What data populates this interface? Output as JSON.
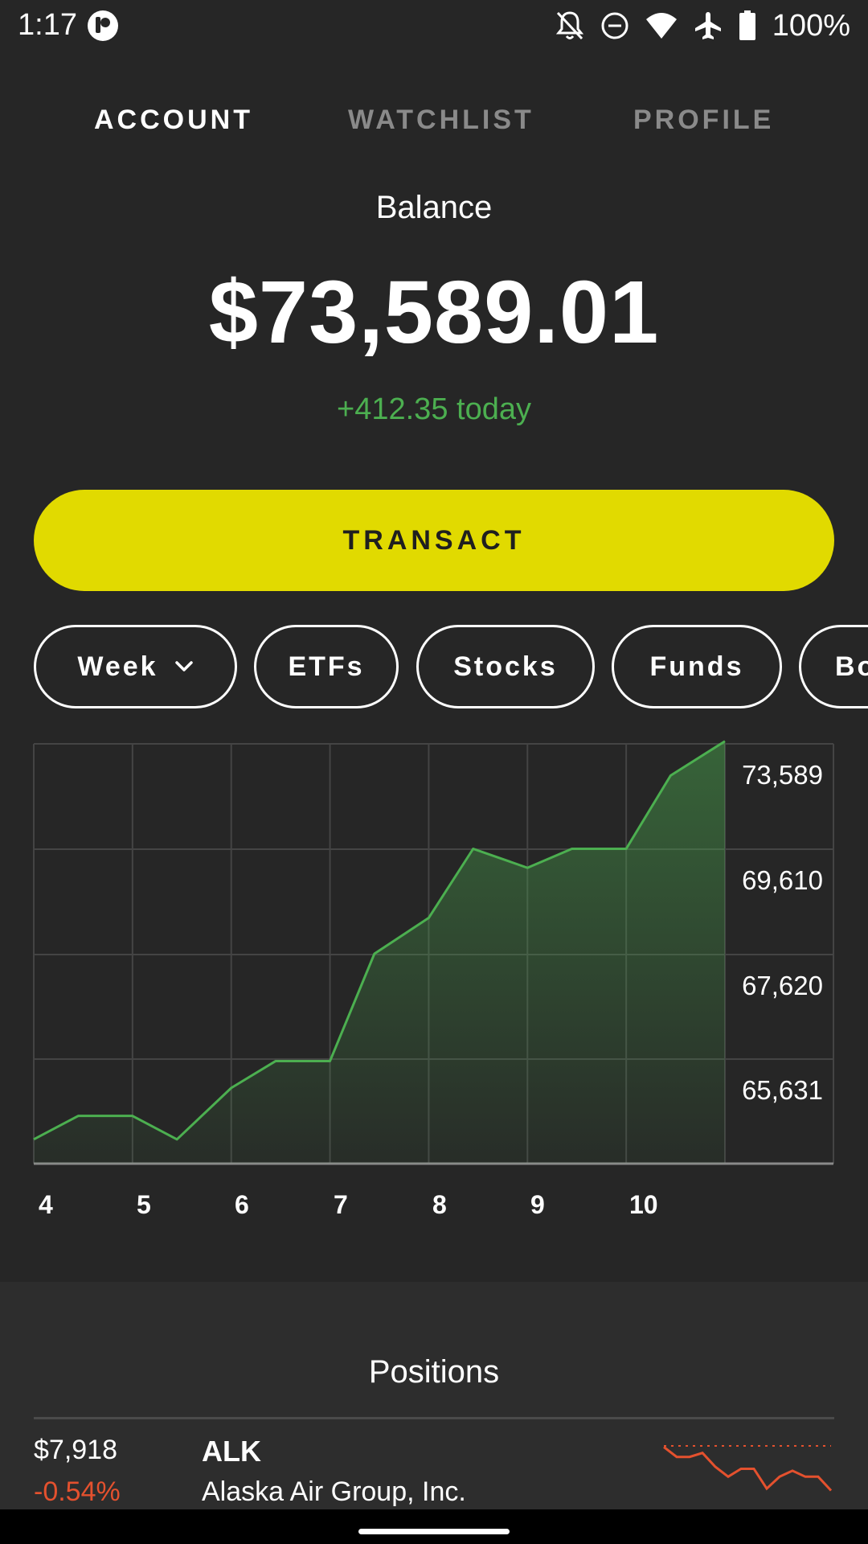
{
  "status_bar": {
    "time": "1:17",
    "battery_text": "100%",
    "icons": [
      "app-notification-icon",
      "bell-off-icon",
      "do-not-disturb-icon",
      "wifi-icon",
      "airplane-icon",
      "battery-icon"
    ]
  },
  "tabs": [
    {
      "label": "ACCOUNT",
      "active": true
    },
    {
      "label": "WATCHLIST",
      "active": false
    },
    {
      "label": "PROFILE",
      "active": false
    }
  ],
  "balance": {
    "label": "Balance",
    "value": "$73,589.01",
    "change": "+412.35 today"
  },
  "transact_label": "TRANSACT",
  "chips": [
    {
      "label": "Week",
      "has_dropdown": true
    },
    {
      "label": "ETFs"
    },
    {
      "label": "Stocks"
    },
    {
      "label": "Funds"
    },
    {
      "label": "Bonds"
    }
  ],
  "chart_data": {
    "type": "area",
    "x_tick_labels": [
      "4",
      "5",
      "6",
      "7",
      "8",
      "9",
      "10"
    ],
    "y_tick_labels": [
      "73,589",
      "69,610",
      "67,620",
      "65,631"
    ],
    "x": [
      4,
      4.45,
      5,
      5.45,
      6,
      6.45,
      7,
      7.45,
      8,
      8.45,
      9,
      9.45,
      10,
      10.45,
      11
    ],
    "y": [
      64100,
      64545,
      64545,
      64100,
      65075,
      65585,
      65585,
      67620,
      68300,
      69610,
      69250,
      69610,
      69610,
      71000,
      71650
    ],
    "ylim": [
      63640,
      71600
    ],
    "grid": true,
    "series_color": "#4caf50"
  },
  "positions": {
    "title": "Positions",
    "rows": [
      {
        "value": "$7,918",
        "change": "-0.54%",
        "symbol": "ALK",
        "name": "Alaska Air Group, Inc.",
        "spark": [
          0.85,
          0.6,
          0.6,
          0.7,
          0.35,
          0.1,
          0.3,
          0.3,
          -0.2,
          0.1,
          0.25,
          0.1,
          0.1,
          -0.25
        ],
        "spark_color": "#e4512e"
      }
    ]
  }
}
